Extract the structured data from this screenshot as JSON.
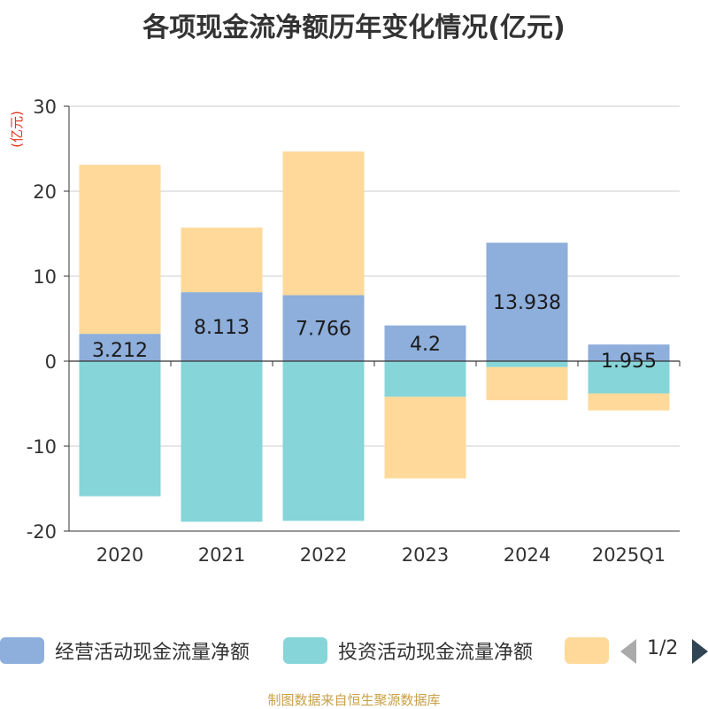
{
  "chart_data": {
    "type": "bar",
    "stacked": true,
    "title": "各项现金流净额历年变化情况(亿元)",
    "unit_label": "(亿元)",
    "categories": [
      "2020",
      "2021",
      "2022",
      "2023",
      "2024",
      "2025Q1"
    ],
    "series": [
      {
        "name": "经营活动现金流量净额",
        "color": "#8eaedb",
        "values": [
          3.212,
          8.113,
          7.766,
          4.2,
          13.938,
          1.955
        ],
        "labels": [
          "3.212",
          "8.113",
          "7.766",
          "4.2",
          "13.938",
          "1.955"
        ]
      },
      {
        "name": "投资活动现金流量净额",
        "color": "#86d5d9",
        "values": [
          -15.9,
          -18.9,
          -18.8,
          -4.2,
          -0.7,
          -3.8
        ]
      },
      {
        "name": "",
        "color": "#fed999",
        "values": [
          19.9,
          7.6,
          16.9,
          -9.6,
          -3.9,
          -2.0
        ]
      }
    ],
    "ylim": [
      -20,
      30
    ],
    "yticks": [
      -20,
      -10,
      0,
      10,
      20,
      30
    ],
    "grid": true
  },
  "legend": {
    "page_indicator": "1/2"
  },
  "footer": {
    "source": "制图数据来自恒生聚源数据库"
  }
}
